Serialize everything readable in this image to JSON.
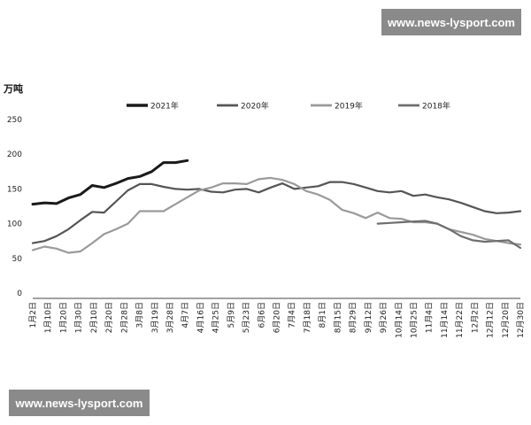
{
  "watermarks": {
    "top": "www.news-lysport.com",
    "bottom": "www.news-lysport.com"
  },
  "chart_data": {
    "type": "line",
    "ylabel": "万吨",
    "ylim": [
      0,
      250
    ],
    "yticks": [
      0,
      50,
      100,
      150,
      200,
      250
    ],
    "grid": false,
    "legend_placement": "top",
    "x": [
      "1月2日",
      "1月10日",
      "1月20日",
      "1月30日",
      "2月10日",
      "2月20日",
      "2月28日",
      "3月8日",
      "3月19日",
      "3月28日",
      "4月7日",
      "4月16日",
      "4月25日",
      "5月9日",
      "5月23日",
      "6月6日",
      "6月20日",
      "7月4日",
      "7月18日",
      "8月1日",
      "8月15日",
      "8月29日",
      "9月12日",
      "9月26日",
      "10月14日",
      "10月25日",
      "11月4日",
      "11月14日",
      "11月22日",
      "12月2日",
      "12月12日",
      "12月20日",
      "12月30日"
    ],
    "series": [
      {
        "name": "2021年",
        "color": "#1a1a1a",
        "width": 3,
        "points": [
          [
            0,
            128
          ],
          [
            1,
            130
          ],
          [
            2,
            129
          ],
          [
            3,
            137
          ],
          [
            4,
            142
          ],
          [
            5,
            155
          ],
          [
            6,
            152
          ],
          [
            7,
            158
          ],
          [
            8,
            165
          ],
          [
            9,
            168
          ],
          [
            10,
            175
          ],
          [
            11,
            188
          ],
          [
            12,
            188
          ],
          [
            13,
            191
          ]
        ]
      },
      {
        "name": "2020年",
        "color": "#555555",
        "width": 2.2,
        "points": [
          [
            0,
            72
          ],
          [
            1,
            75
          ],
          [
            2,
            82
          ],
          [
            3,
            92
          ],
          [
            4,
            105
          ],
          [
            5,
            117
          ],
          [
            6,
            116
          ],
          [
            7,
            132
          ],
          [
            8,
            148
          ],
          [
            9,
            157
          ],
          [
            10,
            157
          ],
          [
            11,
            153
          ],
          [
            12,
            150
          ],
          [
            13,
            149
          ],
          [
            14,
            150
          ],
          [
            15,
            146
          ],
          [
            16,
            145
          ],
          [
            17,
            149
          ],
          [
            18,
            150
          ],
          [
            19,
            145
          ],
          [
            20,
            152
          ],
          [
            21,
            158
          ],
          [
            22,
            150
          ],
          [
            23,
            152
          ],
          [
            24,
            154
          ],
          [
            25,
            160
          ],
          [
            26,
            160
          ],
          [
            27,
            157
          ],
          [
            28,
            152
          ],
          [
            29,
            147
          ],
          [
            30,
            145
          ],
          [
            31,
            147
          ],
          [
            32,
            140
          ],
          [
            33,
            142
          ],
          [
            34,
            138
          ],
          [
            35,
            135
          ],
          [
            36,
            130
          ],
          [
            37,
            124
          ],
          [
            38,
            118
          ],
          [
            39,
            115
          ],
          [
            40,
            116
          ],
          [
            41,
            118
          ]
        ]
      },
      {
        "name": "2019年",
        "color": "#9a9a9a",
        "width": 2.2,
        "points": [
          [
            0,
            62
          ],
          [
            1,
            67
          ],
          [
            2,
            64
          ],
          [
            3,
            58
          ],
          [
            4,
            60
          ],
          [
            5,
            72
          ],
          [
            6,
            85
          ],
          [
            7,
            92
          ],
          [
            8,
            100
          ],
          [
            9,
            118
          ],
          [
            10,
            118
          ],
          [
            11,
            118
          ],
          [
            12,
            128
          ],
          [
            13,
            138
          ],
          [
            14,
            148
          ],
          [
            15,
            152
          ],
          [
            16,
            158
          ],
          [
            17,
            158
          ],
          [
            18,
            157
          ],
          [
            19,
            164
          ],
          [
            20,
            166
          ],
          [
            21,
            163
          ],
          [
            22,
            157
          ],
          [
            23,
            147
          ],
          [
            24,
            142
          ],
          [
            25,
            134
          ],
          [
            26,
            120
          ],
          [
            27,
            115
          ],
          [
            28,
            108
          ],
          [
            29,
            116
          ],
          [
            30,
            108
          ],
          [
            31,
            107
          ],
          [
            32,
            102
          ],
          [
            33,
            102
          ],
          [
            34,
            100
          ],
          [
            35,
            92
          ],
          [
            36,
            88
          ],
          [
            37,
            84
          ],
          [
            38,
            78
          ],
          [
            39,
            75
          ],
          [
            40,
            72
          ],
          [
            41,
            70
          ]
        ]
      },
      {
        "name": "2018年",
        "color": "#6e6e6e",
        "width": 2.2,
        "points": [
          [
            29,
            100
          ],
          [
            30,
            101
          ],
          [
            31,
            102
          ],
          [
            32,
            103
          ],
          [
            33,
            104
          ],
          [
            34,
            100
          ],
          [
            35,
            92
          ],
          [
            36,
            82
          ],
          [
            37,
            76
          ],
          [
            38,
            74
          ],
          [
            39,
            75
          ],
          [
            40,
            76
          ],
          [
            41,
            65
          ]
        ]
      }
    ],
    "series_x_positions": 42
  }
}
